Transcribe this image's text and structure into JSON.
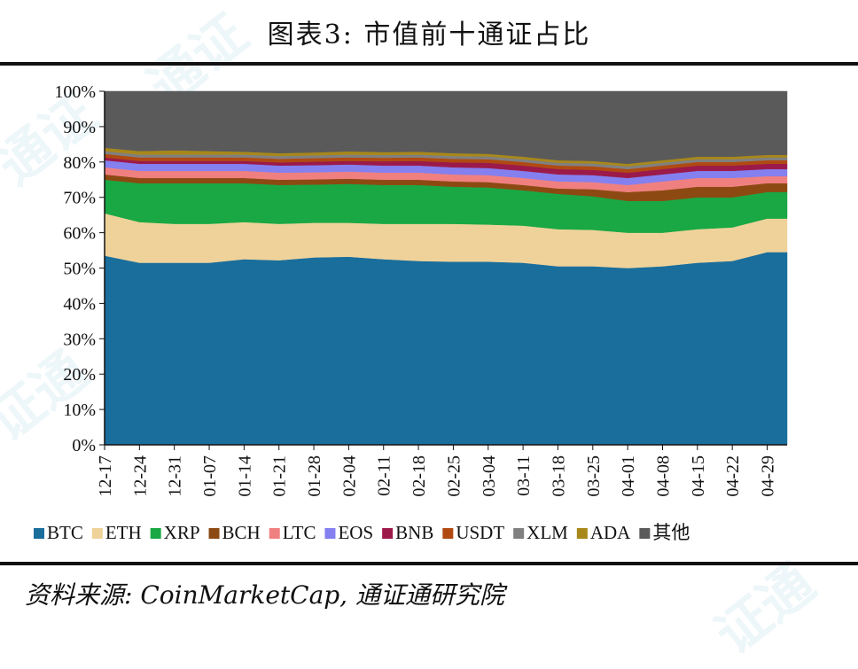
{
  "title": "图表3:  市值前十通证占比",
  "source": "资料来源:  CoinMarketCap,  通证通研究院",
  "watermarks": [
    "通证",
    "证通",
    "通证",
    "证通"
  ],
  "chart_data": {
    "type": "area",
    "stacked": true,
    "title": "图表3:  市值前十通证占比",
    "ylim": [
      0,
      100
    ],
    "yticks": [
      "0%",
      "10%",
      "20%",
      "30%",
      "40%",
      "50%",
      "60%",
      "70%",
      "80%",
      "90%",
      "100%"
    ],
    "x_tick_labels": [
      "12-17",
      "12-24",
      "12-31",
      "01-07",
      "01-14",
      "01-21",
      "01-28",
      "02-04",
      "02-11",
      "02-18",
      "02-25",
      "03-04",
      "03-11",
      "03-18",
      "03-25",
      "04-01",
      "04-08",
      "04-15",
      "04-22",
      "04-29"
    ],
    "x": [
      0,
      7,
      14,
      21,
      28,
      35,
      42,
      49,
      56,
      63,
      70,
      77,
      84,
      91,
      98,
      105,
      112,
      119,
      126,
      133,
      137
    ],
    "xlim": [
      0,
      137
    ],
    "legend": "bottom",
    "series": [
      {
        "name": "BTC",
        "color": "#1a6e9c",
        "values": [
          53.5,
          51.5,
          51.5,
          51.5,
          52.5,
          52.2,
          53.0,
          53.2,
          52.5,
          52.0,
          51.8,
          51.8,
          51.5,
          50.5,
          50.5,
          50.0,
          50.5,
          51.5,
          52.0,
          54.5,
          54.5
        ]
      },
      {
        "name": "ETH",
        "color": "#efd29a",
        "values": [
          12.0,
          11.5,
          11.0,
          11.0,
          10.5,
          10.3,
          9.8,
          9.6,
          10.0,
          10.5,
          10.7,
          10.5,
          10.5,
          10.5,
          10.3,
          10.0,
          9.5,
          9.5,
          9.5,
          9.5,
          9.5
        ]
      },
      {
        "name": "XRP",
        "color": "#19a844",
        "values": [
          9.5,
          11.0,
          11.5,
          11.5,
          11.0,
          11.0,
          10.8,
          11.0,
          11.0,
          11.0,
          10.5,
          10.5,
          10.0,
          10.0,
          9.5,
          9.0,
          9.0,
          9.0,
          8.5,
          7.5,
          7.5
        ]
      },
      {
        "name": "BCH",
        "color": "#8c4a12",
        "values": [
          1.5,
          1.5,
          1.5,
          1.5,
          1.5,
          1.5,
          1.5,
          1.5,
          1.5,
          1.5,
          1.5,
          1.5,
          1.5,
          1.5,
          2.0,
          2.5,
          3.0,
          3.0,
          3.0,
          2.5,
          2.5
        ]
      },
      {
        "name": "LTC",
        "color": "#f08080",
        "values": [
          2.0,
          2.0,
          2.0,
          2.0,
          2.0,
          2.0,
          2.0,
          2.0,
          2.0,
          2.0,
          2.0,
          2.0,
          2.0,
          2.0,
          2.0,
          2.0,
          2.5,
          2.5,
          2.5,
          2.0,
          2.0
        ]
      },
      {
        "name": "EOS",
        "color": "#8480f0",
        "values": [
          2.0,
          2.0,
          2.0,
          2.0,
          2.0,
          2.0,
          2.0,
          2.0,
          2.0,
          2.0,
          2.0,
          2.0,
          2.0,
          2.0,
          2.0,
          2.0,
          2.0,
          2.0,
          2.0,
          2.0,
          2.0
        ]
      },
      {
        "name": "BNB",
        "color": "#9c1a4a",
        "values": [
          0.8,
          0.8,
          0.8,
          0.8,
          0.8,
          0.9,
          1.0,
          1.0,
          1.2,
          1.3,
          1.4,
          1.5,
          1.5,
          1.5,
          1.5,
          1.5,
          1.5,
          1.5,
          1.5,
          1.5,
          1.5
        ]
      },
      {
        "name": "USDT",
        "color": "#b04a12",
        "values": [
          1.0,
          1.0,
          1.0,
          1.0,
          1.0,
          1.0,
          1.0,
          1.0,
          1.0,
          1.0,
          1.0,
          1.0,
          1.0,
          1.0,
          1.0,
          1.0,
          1.0,
          1.0,
          1.0,
          1.0,
          1.0
        ]
      },
      {
        "name": "XLM",
        "color": "#808080",
        "values": [
          0.8,
          0.8,
          0.8,
          0.8,
          0.8,
          0.8,
          0.8,
          0.8,
          0.8,
          0.8,
          0.8,
          0.8,
          0.8,
          0.8,
          0.8,
          0.8,
          0.8,
          0.8,
          0.8,
          0.8,
          0.8
        ]
      },
      {
        "name": "ADA",
        "color": "#a8881a",
        "values": [
          0.9,
          1.0,
          1.2,
          1.0,
          0.8,
          0.8,
          0.8,
          0.9,
          0.8,
          0.8,
          0.8,
          0.7,
          0.7,
          0.7,
          0.7,
          0.7,
          0.7,
          0.7,
          0.7,
          0.7,
          0.7
        ]
      },
      {
        "name": "其他",
        "color": "#5a5a5a",
        "values": [
          16.0,
          16.9,
          16.7,
          16.9,
          17.1,
          17.2,
          17.3,
          17.0,
          17.2,
          17.1,
          17.5,
          17.5,
          18.5,
          19.5,
          19.7,
          20.5,
          19.5,
          18.5,
          18.5,
          18.0,
          18.0
        ]
      }
    ]
  }
}
